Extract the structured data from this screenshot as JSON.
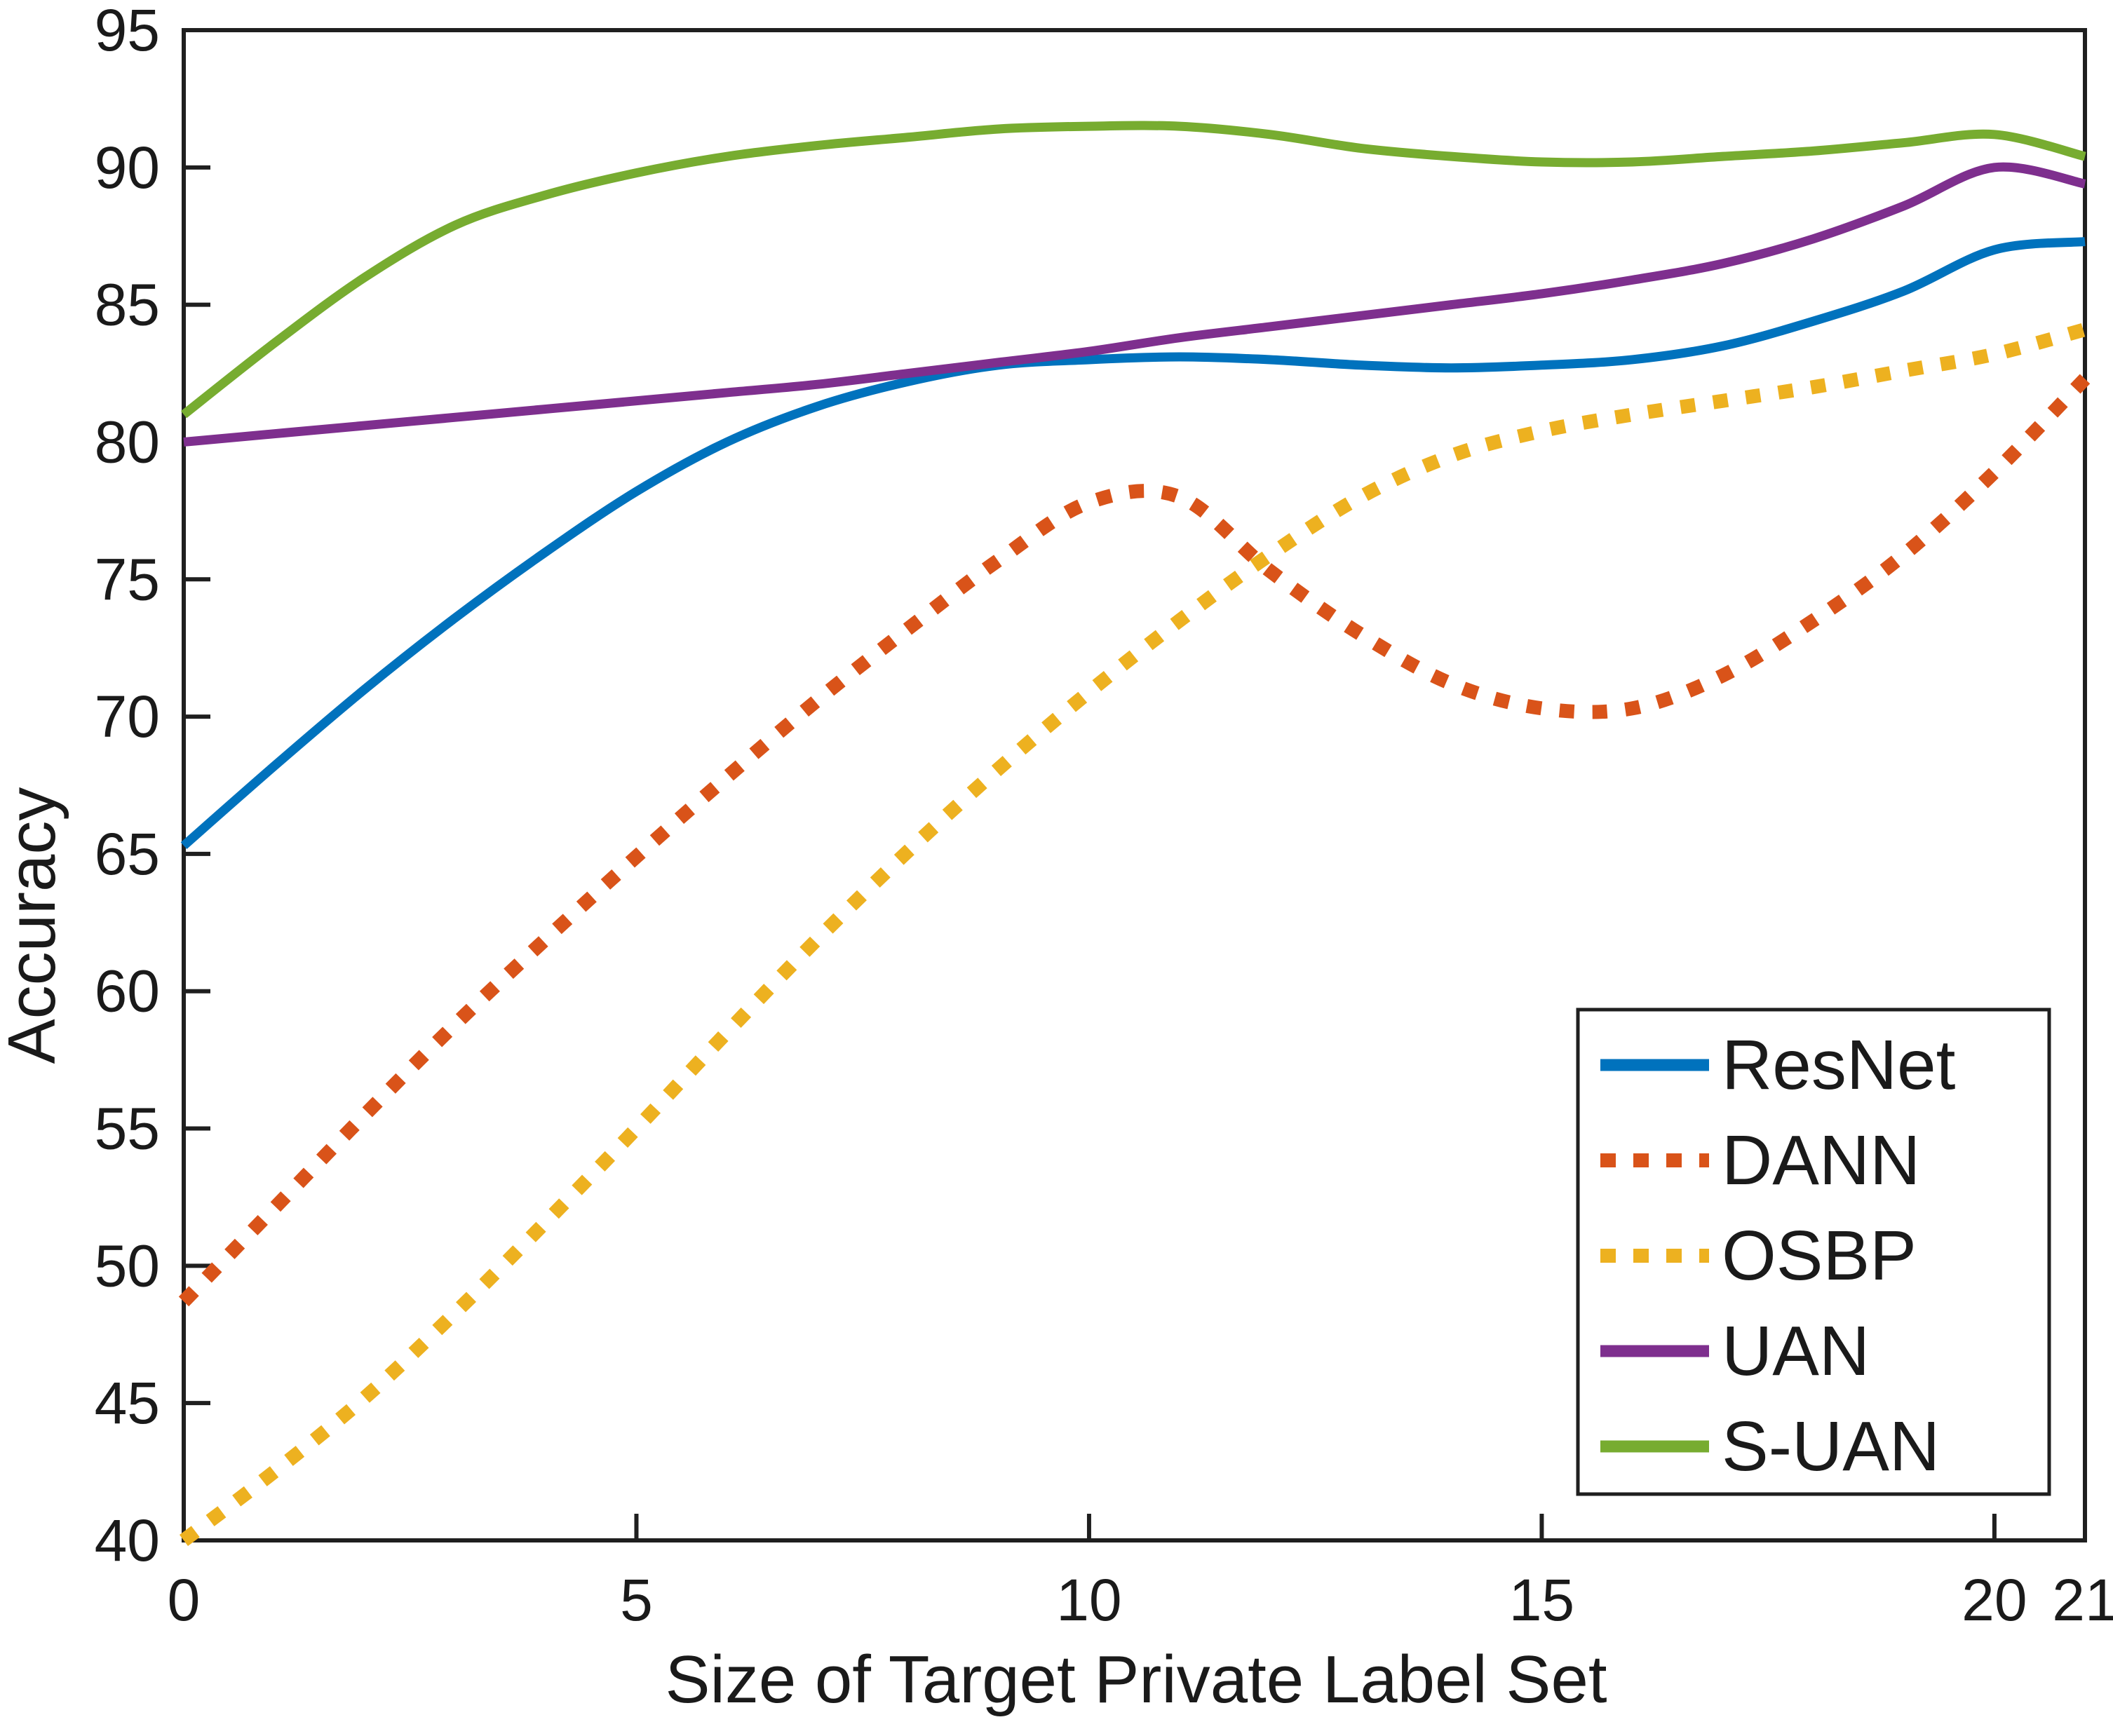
{
  "chart_data": {
    "type": "line",
    "title": "",
    "xlabel": "Size of Target Private Label Set",
    "ylabel": "Accuracy",
    "xlim": [
      0,
      21
    ],
    "ylim": [
      40,
      95
    ],
    "x_ticks": [
      0,
      5,
      10,
      15,
      20,
      21
    ],
    "y_ticks": [
      40,
      45,
      50,
      55,
      60,
      65,
      70,
      75,
      80,
      85,
      90,
      95
    ],
    "grid": false,
    "legend_position": "lower right",
    "axis_color": "#1f1f1f",
    "x": [
      0,
      1,
      2,
      3,
      4,
      5,
      6,
      7,
      8,
      9,
      10,
      11,
      12,
      13,
      14,
      15,
      16,
      17,
      18,
      19,
      20,
      21
    ],
    "series": [
      {
        "name": "ResNet",
        "color": "#0072BD",
        "style": "solid",
        "values": [
          65.3,
          68.2,
          71.0,
          73.6,
          76.0,
          78.2,
          80.0,
          81.3,
          82.2,
          82.8,
          83.0,
          83.1,
          83.0,
          82.8,
          82.7,
          82.8,
          83.0,
          83.5,
          84.4,
          85.5,
          87.0,
          87.3
        ]
      },
      {
        "name": "DANN",
        "color": "#D95319",
        "style": "dotted",
        "values": [
          48.7,
          52.1,
          55.5,
          58.8,
          61.9,
          64.9,
          67.8,
          70.6,
          73.2,
          75.7,
          77.8,
          78.0,
          75.3,
          73.0,
          71.2,
          70.3,
          70.3,
          71.5,
          73.5,
          75.9,
          78.9,
          82.3
        ]
      },
      {
        "name": "OSBP",
        "color": "#EDB120",
        "style": "dotted",
        "values": [
          40.0,
          42.5,
          45.2,
          48.3,
          51.6,
          55.0,
          58.5,
          61.9,
          65.1,
          68.1,
          70.9,
          73.5,
          75.9,
          78.0,
          79.5,
          80.4,
          81.0,
          81.5,
          82.0,
          82.6,
          83.2,
          84.1
        ]
      },
      {
        "name": "UAN",
        "color": "#7E2F8E",
        "style": "solid",
        "values": [
          80.0,
          80.3,
          80.6,
          80.9,
          81.2,
          81.5,
          81.8,
          82.1,
          82.5,
          82.9,
          83.3,
          83.8,
          84.2,
          84.6,
          85.0,
          85.4,
          85.9,
          86.5,
          87.4,
          88.6,
          90.0,
          89.4
        ]
      },
      {
        "name": "S-UAN",
        "color": "#77AC30",
        "style": "solid",
        "values": [
          81.0,
          83.6,
          86.0,
          87.9,
          89.0,
          89.8,
          90.4,
          90.8,
          91.1,
          91.4,
          91.5,
          91.5,
          91.2,
          90.7,
          90.4,
          90.2,
          90.2,
          90.4,
          90.6,
          90.9,
          91.2,
          90.4
        ]
      }
    ]
  }
}
